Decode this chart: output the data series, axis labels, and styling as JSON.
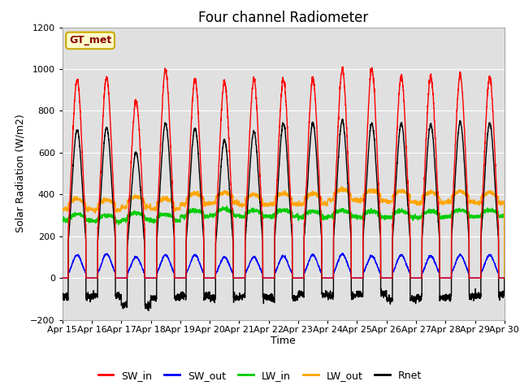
{
  "title": "Four channel Radiometer",
  "xlabel": "Time",
  "ylabel": "Solar Radiation (W/m2)",
  "ylim": [
    -200,
    1200
  ],
  "xlim": [
    0,
    15
  ],
  "x_tick_labels": [
    "Apr 15",
    "Apr 16",
    "Apr 17",
    "Apr 18",
    "Apr 19",
    "Apr 20",
    "Apr 21",
    "Apr 22",
    "Apr 23",
    "Apr 24",
    "Apr 25",
    "Apr 26",
    "Apr 27",
    "Apr 28",
    "Apr 29",
    "Apr 30"
  ],
  "background_color": "#ffffff",
  "plot_bg_color": "#e0e0e0",
  "legend_labels": [
    "SW_in",
    "SW_out",
    "LW_in",
    "LW_out",
    "Rnet"
  ],
  "legend_colors": [
    "#ff0000",
    "#0000ff",
    "#00cc00",
    "#ffa500",
    "#000000"
  ],
  "annotation_text": "GT_met",
  "annotation_bg": "#ffffcc",
  "annotation_border": "#ccaa00",
  "title_fontsize": 12,
  "axis_label_fontsize": 9,
  "tick_fontsize": 8,
  "n_days": 15,
  "SW_in_peak": [
    950,
    960,
    845,
    995,
    950,
    940,
    950,
    950,
    950,
    1000,
    1000,
    965,
    965,
    970,
    960
  ],
  "SW_out_peak": [
    110,
    115,
    100,
    110,
    110,
    100,
    100,
    105,
    110,
    115,
    105,
    110,
    105,
    110,
    110
  ],
  "LW_in_base": [
    275,
    270,
    280,
    275,
    295,
    300,
    295,
    295,
    290,
    295,
    290,
    290,
    290,
    295,
    295
  ],
  "LW_out_base": [
    330,
    325,
    340,
    330,
    355,
    360,
    350,
    355,
    355,
    375,
    370,
    365,
    360,
    365,
    360
  ],
  "Rnet_peak": [
    710,
    720,
    600,
    740,
    715,
    660,
    700,
    740,
    740,
    755,
    740,
    740,
    735,
    745,
    740
  ],
  "Rnet_night": [
    -90,
    -85,
    -130,
    -95,
    -85,
    -95,
    -90,
    -95,
    -80,
    -85,
    -75,
    -100,
    -95,
    -90,
    -80
  ]
}
